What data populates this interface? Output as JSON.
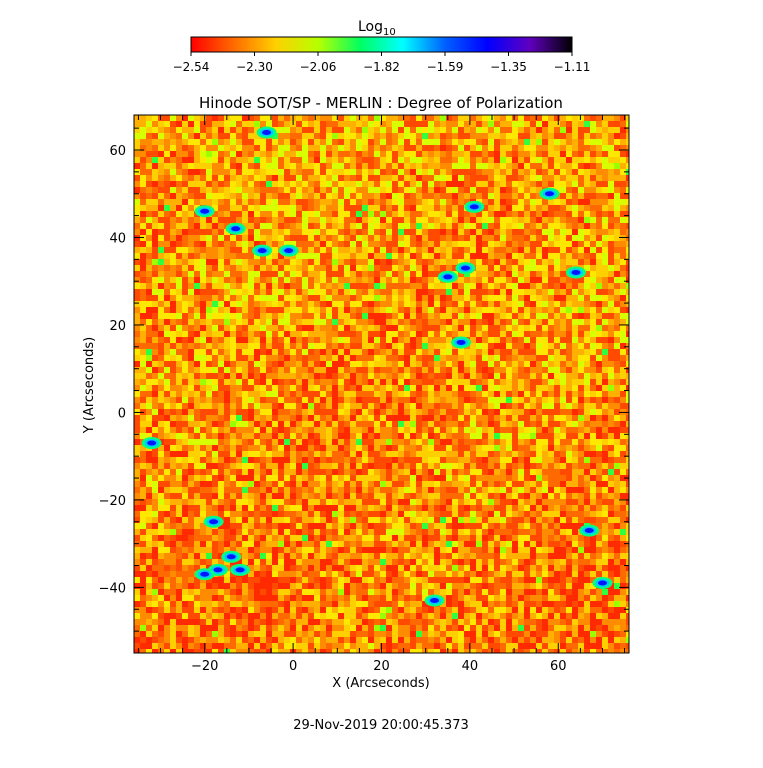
{
  "chart_data": {
    "type": "heatmap",
    "title": "Hinode SOT/SP - MERLIN : Degree of Polarization",
    "xlabel": "X (Arcseconds)",
    "ylabel": "Y (Arcseconds)",
    "xlim": [
      -36,
      76
    ],
    "ylim": [
      -55,
      68
    ],
    "x_ticks": [
      -20,
      0,
      20,
      40,
      60
    ],
    "y_ticks": [
      -40,
      -20,
      0,
      20,
      40,
      60
    ],
    "colorbar": {
      "label_base": "Log",
      "label_sub": "10",
      "ticks": [
        "-2.54",
        "-2.30",
        "-2.06",
        "-1.82",
        "-1.59",
        "-1.35",
        "-1.11"
      ],
      "range": [
        -2.54,
        -1.11
      ],
      "colormap": [
        "#ff0000",
        "#ff6a00",
        "#ffd000",
        "#b8ff00",
        "#00ff60",
        "#00ffff",
        "#0060ff",
        "#0000ff",
        "#6000c0",
        "#000000"
      ]
    },
    "strong_patches": [
      [
        -6,
        64
      ],
      [
        -20,
        46
      ],
      [
        -13,
        42
      ],
      [
        -7,
        37
      ],
      [
        -1,
        37
      ],
      [
        35,
        31
      ],
      [
        39,
        33
      ],
      [
        38,
        16
      ],
      [
        41,
        47
      ],
      [
        58,
        50
      ],
      [
        64,
        32
      ],
      [
        -32,
        -7
      ],
      [
        -18,
        -25
      ],
      [
        -14,
        -33
      ],
      [
        -17,
        -36
      ],
      [
        -12,
        -36
      ],
      [
        -20,
        -37
      ],
      [
        32,
        -43
      ],
      [
        67,
        -27
      ],
      [
        70,
        -39
      ]
    ],
    "timestamp": "29-Nov-2019 20:00:45.373"
  }
}
